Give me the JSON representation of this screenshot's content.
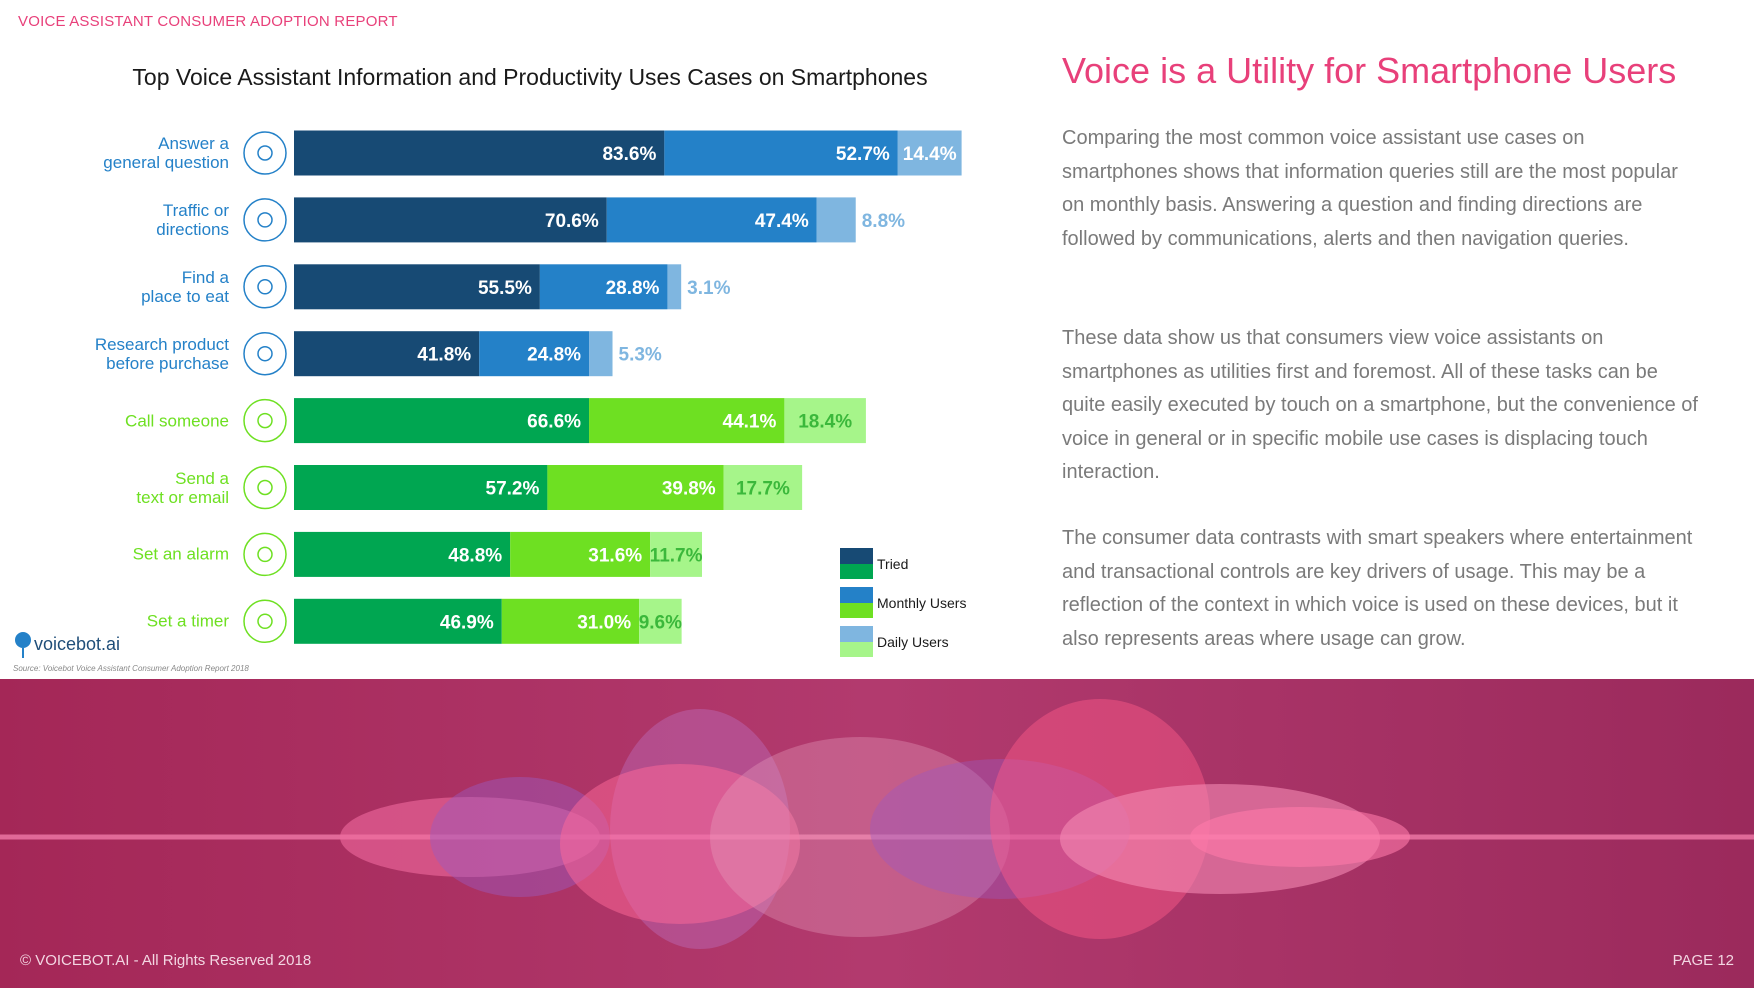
{
  "header": {
    "title": "VOICE ASSISTANT CONSUMER ADOPTION REPORT"
  },
  "chart_data": {
    "type": "stacked-bar-horizontal",
    "title": "Top Voice Assistant Information and Productivity Uses Cases on Smartphones",
    "categories": [
      "Answer a\ngeneral question",
      "Traffic or\ndirections",
      "Find a\nplace to eat",
      "Research product\nbefore purchase",
      "Call someone",
      "Send a\ntext or email",
      "Set an alarm",
      "Set a timer"
    ],
    "series": [
      {
        "name": "Tried",
        "colors": [
          "#174a74",
          "#174a74",
          "#174a74",
          "#174a74",
          "#00a651",
          "#00a651",
          "#00a651",
          "#00a651"
        ],
        "label_color": "#ffffff",
        "values": [
          83.6,
          70.6,
          55.5,
          41.8,
          66.6,
          57.2,
          48.8,
          46.9
        ],
        "value_labels": [
          "83.6%",
          "70.6%",
          "55.5%",
          "41.8%",
          "66.6%",
          "57.2%",
          "48.8%",
          "46.9%"
        ]
      },
      {
        "name": "Monthly Users",
        "colors": [
          "#2481c8",
          "#2481c8",
          "#2481c8",
          "#2481c8",
          "#6ee022",
          "#6ee022",
          "#6ee022",
          "#6ee022"
        ],
        "label_color": "#ffffff",
        "values": [
          52.7,
          47.4,
          28.8,
          24.8,
          44.1,
          39.8,
          31.6,
          31.0
        ],
        "value_labels": [
          "52.7%",
          "47.4%",
          "28.8%",
          "24.8%",
          "44.1%",
          "39.8%",
          "31.6%",
          "31.0%"
        ]
      },
      {
        "name": "Daily Users",
        "colors": [
          "#7fb6e0",
          "#7fb6e0",
          "#7fb6e0",
          "#7fb6e0",
          "#a6f58a",
          "#a6f58a",
          "#a6f58a",
          "#a6f58a"
        ],
        "label_colors": [
          "#ffffff",
          "#7fb6e0",
          "#7fb6e0",
          "#7fb6e0",
          "#3bb83b",
          "#3bb83b",
          "#3bb83b",
          "#3bb83b"
        ],
        "values": [
          14.4,
          8.8,
          3.1,
          5.3,
          18.4,
          17.7,
          11.7,
          9.6
        ],
        "value_labels": [
          "14.4%",
          "8.8%",
          "3.1%",
          "5.3%",
          "18.4%",
          "17.7%",
          "11.7%",
          "9.6%"
        ]
      }
    ],
    "source": "Source: Voicebot Voice Assistant Consumer Adoption Report 2018",
    "logo": "voicebot.ai"
  },
  "article": {
    "heading": "Voice is a Utility for Smartphone Users",
    "paragraphs": [
      "Comparing the most common voice assistant use cases on smartphones shows that information queries still are the most popular on monthly basis. Answering a question and finding directions are followed by communications, alerts and then navigation queries.",
      "These data show us that consumers view voice assistants on smartphones as utilities first and foremost. All of these tasks can be quite easily executed by touch on a smartphone, but the convenience of voice in general or in specific mobile use cases is displacing touch interaction.",
      "The consumer data contrasts with smart speakers where entertainment and transactional controls are key drivers of usage. This may be a reflection of the context in which voice is used on these devices, but it also represents areas where usage can grow."
    ]
  },
  "footer": {
    "copyright": "© VOICEBOT.AI - All Rights Reserved 2018",
    "page": "PAGE 12"
  }
}
